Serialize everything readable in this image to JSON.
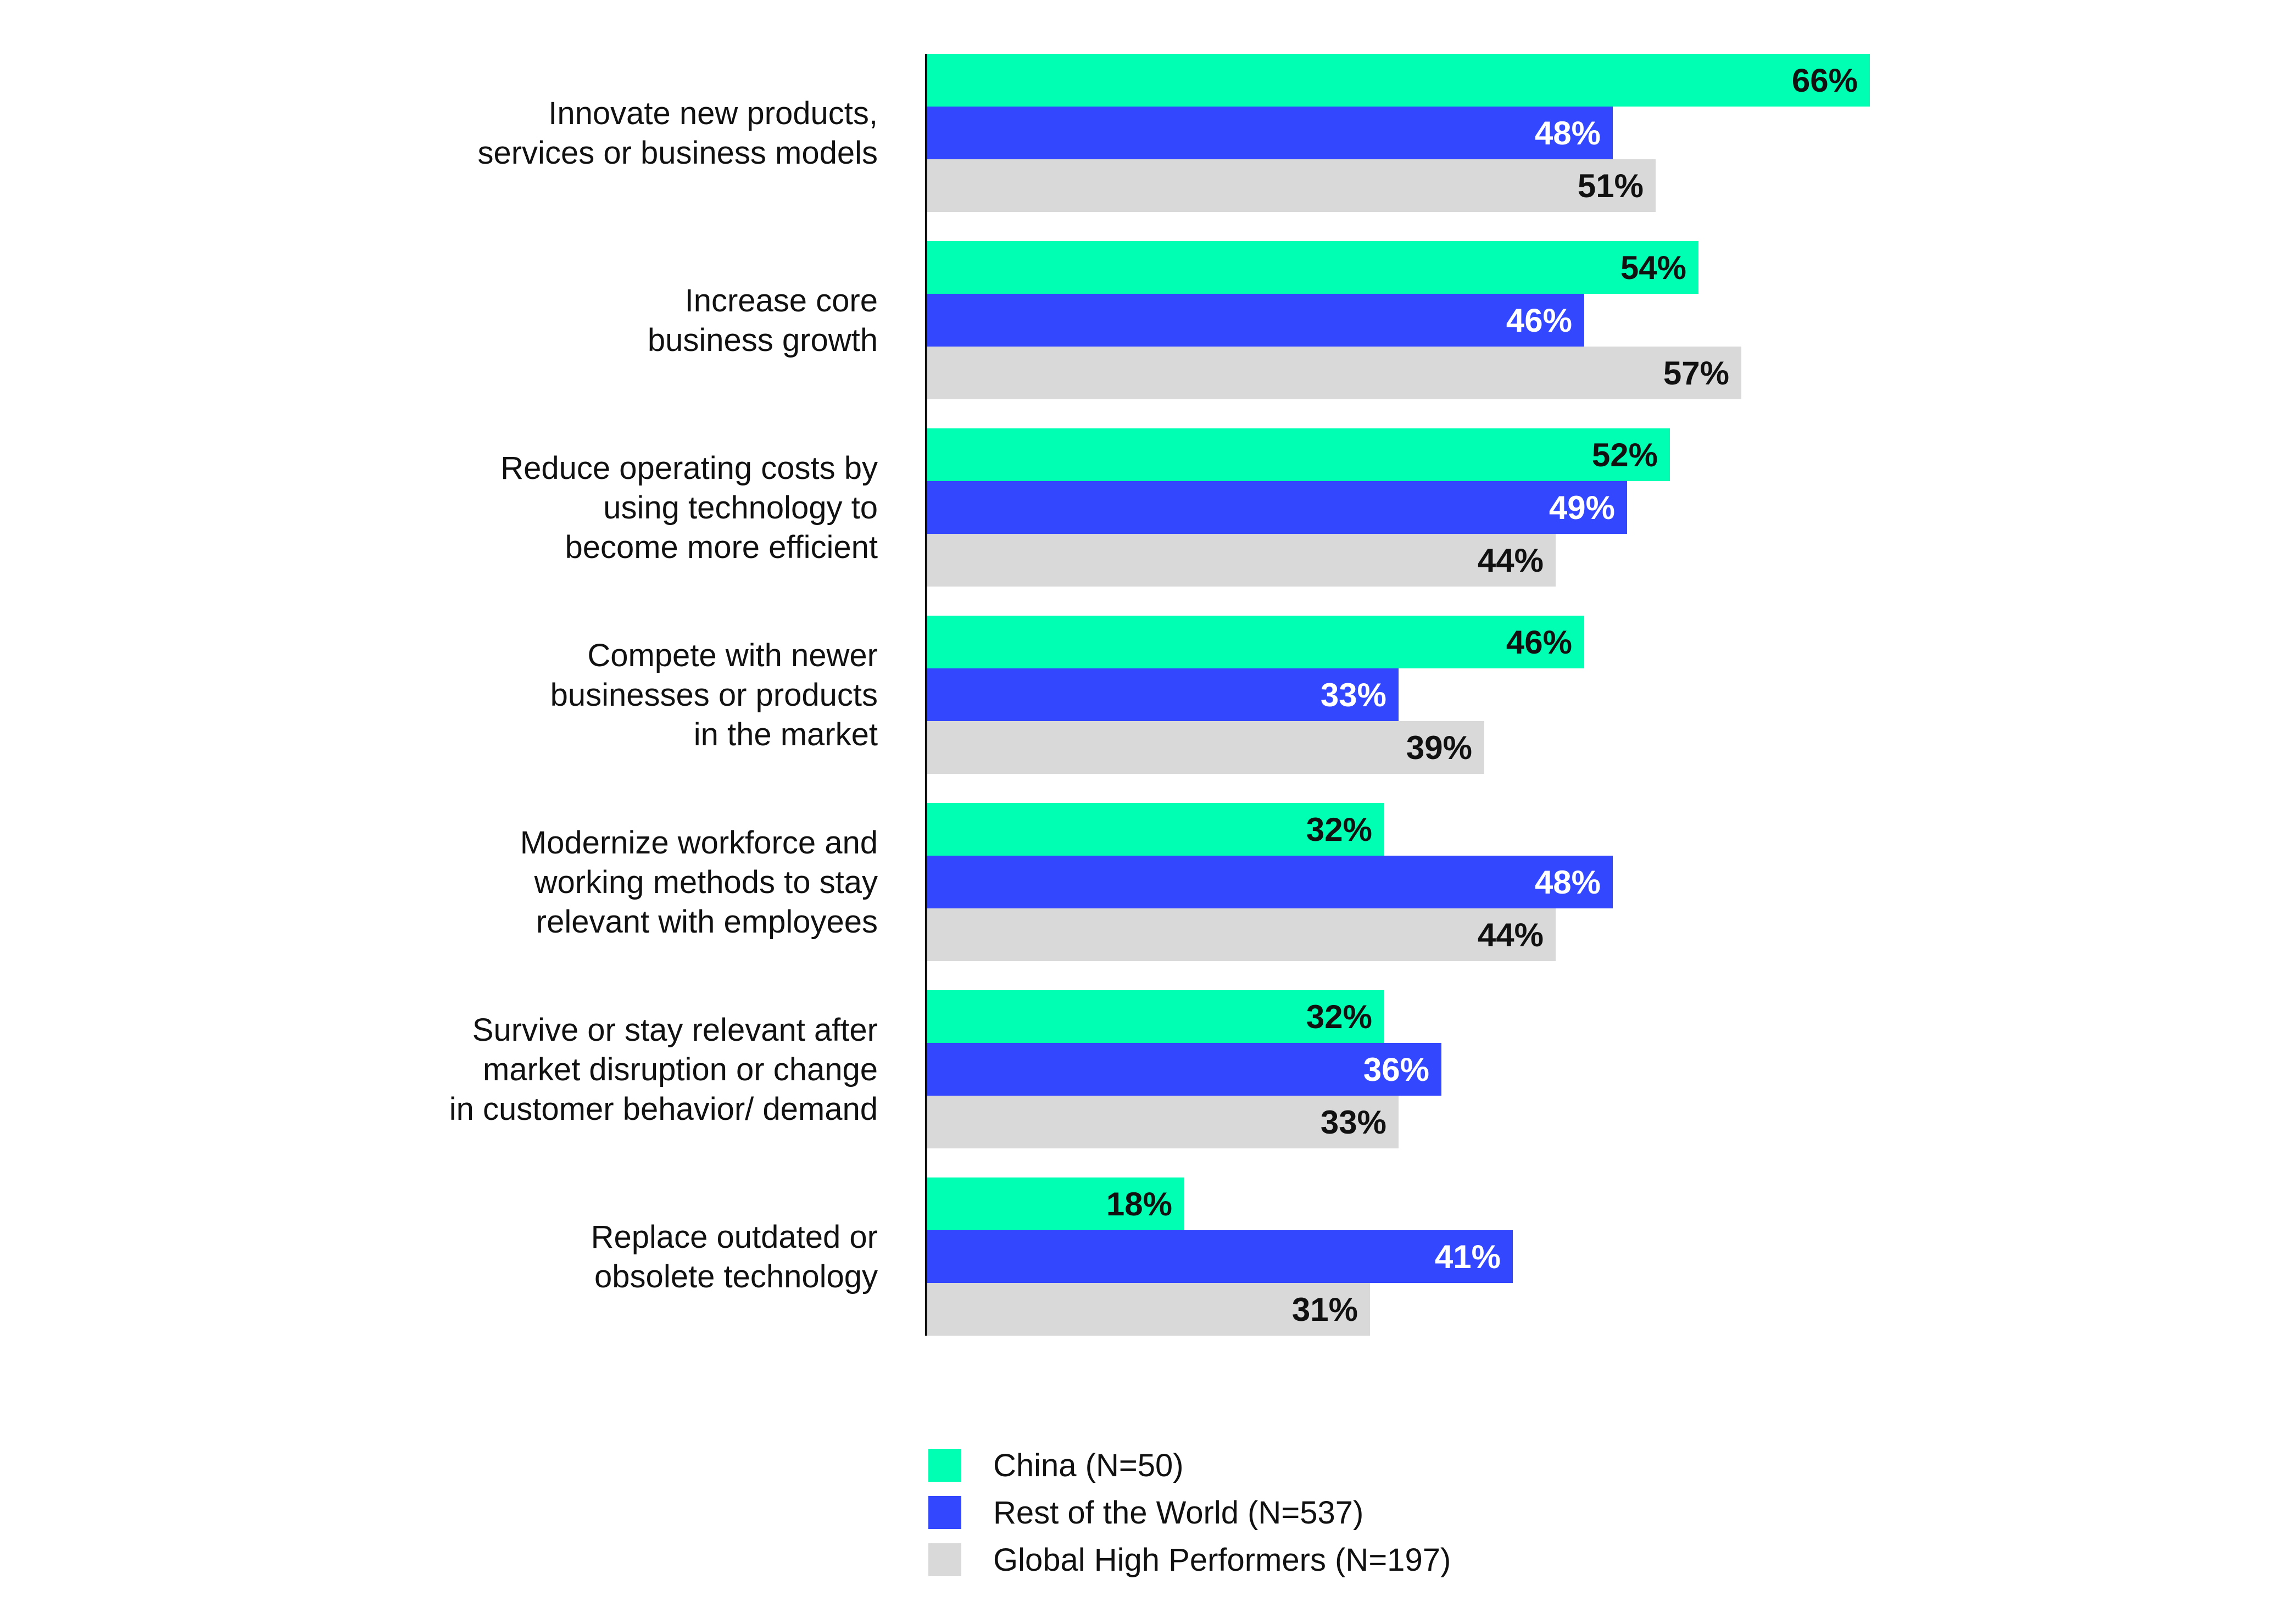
{
  "chart_data": {
    "type": "bar",
    "orientation": "horizontal",
    "categories": [
      [
        "Innovate new products,",
        "services or business models"
      ],
      [
        "Increase core",
        "business growth"
      ],
      [
        "Reduce operating costs by",
        "using technology to",
        "become more efficient"
      ],
      [
        "Compete with newer",
        "businesses or products",
        "in the market"
      ],
      [
        "Modernize workforce and",
        "working methods to stay",
        "relevant with employees"
      ],
      [
        "Survive or stay relevant after",
        "market disruption or change",
        "in customer behavior/ demand"
      ],
      [
        "Replace outdated or",
        "obsolete technology"
      ]
    ],
    "series": [
      {
        "name": "China (N=50)",
        "color": "#00FFB3",
        "label_color": "#111111",
        "values": [
          66,
          54,
          52,
          46,
          32,
          32,
          18
        ],
        "labels": [
          "66%",
          "54%",
          "52%",
          "46%",
          "32%",
          "32%",
          "18%"
        ]
      },
      {
        "name": "Rest of the World (N=537)",
        "color": "#3347FF",
        "label_color": "#FFFFFF",
        "values": [
          48,
          46,
          49,
          33,
          48,
          36,
          41
        ],
        "labels": [
          "48%",
          "46%",
          "49%",
          "33%",
          "48%",
          "36%",
          "41%"
        ]
      },
      {
        "name": "Global High Performers (N=197)",
        "color": "#D9D9D9",
        "label_color": "#111111",
        "values": [
          51,
          57,
          44,
          39,
          44,
          33,
          31
        ],
        "labels": [
          "51%",
          "57%",
          "44%",
          "39%",
          "44%",
          "33%",
          "31%"
        ]
      }
    ],
    "xlim": [
      0,
      66
    ],
    "grid": false,
    "legend_position": "bottom"
  },
  "legend": {
    "items": [
      {
        "label": "China (N=50)",
        "color": "#00FFB3"
      },
      {
        "label": "Rest of the World (N=537)",
        "color": "#3347FF"
      },
      {
        "label": "Global High Performers (N=197)",
        "color": "#D9D9D9"
      }
    ]
  }
}
